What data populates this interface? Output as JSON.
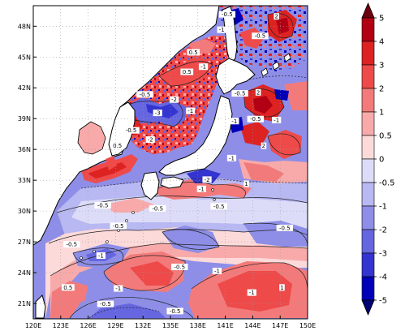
{
  "map": {
    "lat_labels": [
      "48N",
      "45N",
      "42N",
      "39N",
      "36N",
      "33N",
      "30N",
      "27N",
      "24N",
      "21N"
    ],
    "lon_labels": [
      "120E",
      "123E",
      "126E",
      "129E",
      "132E",
      "135E",
      "138E",
      "141E",
      "144E",
      "147E",
      "150E"
    ],
    "lat_range": [
      19.5,
      50
    ],
    "lon_range": [
      120,
      150
    ],
    "grid": "dotted",
    "contour_labels": [
      {
        "text": "-0.5",
        "lon": 141.2,
        "lat": 49.0
      },
      {
        "text": "2",
        "lon": 146.6,
        "lat": 48.8
      },
      {
        "text": "-1",
        "lon": 140.6,
        "lat": 47.5
      },
      {
        "text": "-0.5",
        "lon": 144.8,
        "lat": 46.9
      },
      {
        "text": "0.5",
        "lon": 137.5,
        "lat": 45.3
      },
      {
        "text": "-1",
        "lon": 138.6,
        "lat": 43.9
      },
      {
        "text": "0.5",
        "lon": 136.8,
        "lat": 43.4
      },
      {
        "text": "-0.5",
        "lon": 132.2,
        "lat": 41.2
      },
      {
        "text": "-2",
        "lon": 135.4,
        "lat": 40.7
      },
      {
        "text": "-1",
        "lon": 137.2,
        "lat": 39.6
      },
      {
        "text": "-3",
        "lon": 133.6,
        "lat": 39.4
      },
      {
        "text": "-0.5",
        "lon": 130.7,
        "lat": 37.7
      },
      {
        "text": "-2",
        "lon": 132.8,
        "lat": 36.8
      },
      {
        "text": "0.5",
        "lon": 129.2,
        "lat": 36.2
      },
      {
        "text": "-0.5",
        "lon": 142.6,
        "lat": 41.3
      },
      {
        "text": "2",
        "lon": 144.6,
        "lat": 41.4
      },
      {
        "text": "-1",
        "lon": 142.0,
        "lat": 38.6
      },
      {
        "text": "-0.5",
        "lon": 144.3,
        "lat": 38.8
      },
      {
        "text": "-1",
        "lon": 146.6,
        "lat": 38.7
      },
      {
        "text": "2",
        "lon": 145.2,
        "lat": 36.2
      },
      {
        "text": "-1",
        "lon": 141.7,
        "lat": 35.0
      },
      {
        "text": "-2",
        "lon": 139.0,
        "lat": 32.9
      },
      {
        "text": "-1",
        "lon": 138.4,
        "lat": 32.0
      },
      {
        "text": "1",
        "lon": 143.3,
        "lat": 32.5
      },
      {
        "text": "-0.5",
        "lon": 127.6,
        "lat": 30.4
      },
      {
        "text": "-0.5",
        "lon": 133.6,
        "lat": 30.1
      },
      {
        "text": "-0.5",
        "lon": 140.3,
        "lat": 30.3
      },
      {
        "text": "-0.5",
        "lon": 129.3,
        "lat": 28.4
      },
      {
        "text": "-0.5",
        "lon": 147.5,
        "lat": 28.2
      },
      {
        "text": "-0.5",
        "lon": 124.2,
        "lat": 26.6
      },
      {
        "text": "-1",
        "lon": 127.4,
        "lat": 25.5
      },
      {
        "text": "-0.5",
        "lon": 136.0,
        "lat": 24.4
      },
      {
        "text": "-1",
        "lon": 140.1,
        "lat": 24.0
      },
      {
        "text": "0.5",
        "lon": 123.8,
        "lat": 22.4
      },
      {
        "text": "-1",
        "lon": 129.3,
        "lat": 22.3
      },
      {
        "text": "-1",
        "lon": 143.9,
        "lat": 21.9
      },
      {
        "text": "-0.5",
        "lon": 127.9,
        "lat": 20.8
      },
      {
        "text": "-0.5",
        "lon": 135.5,
        "lat": 20.1
      },
      {
        "text": "1",
        "lon": 147.2,
        "lat": 22.4
      }
    ]
  },
  "colorbar": {
    "labels": [
      "5",
      "4",
      "3",
      "2",
      "1",
      "0.5",
      "0",
      "-0.5",
      "-1",
      "-2",
      "-3",
      "-4",
      "-5"
    ],
    "colors": [
      "#6b0010",
      "#b20014",
      "#dd2222",
      "#ee4a4a",
      "#f37a7a",
      "#f8aaaa",
      "#fcdada",
      "#dcdcf8",
      "#b8b8f2",
      "#8e8ee8",
      "#6666e0",
      "#3434d0",
      "#0000b8",
      "#000070"
    ],
    "extend": "both"
  },
  "colors": {
    "land": "#ffffff",
    "coast": "#000000",
    "contour": "#222222"
  }
}
